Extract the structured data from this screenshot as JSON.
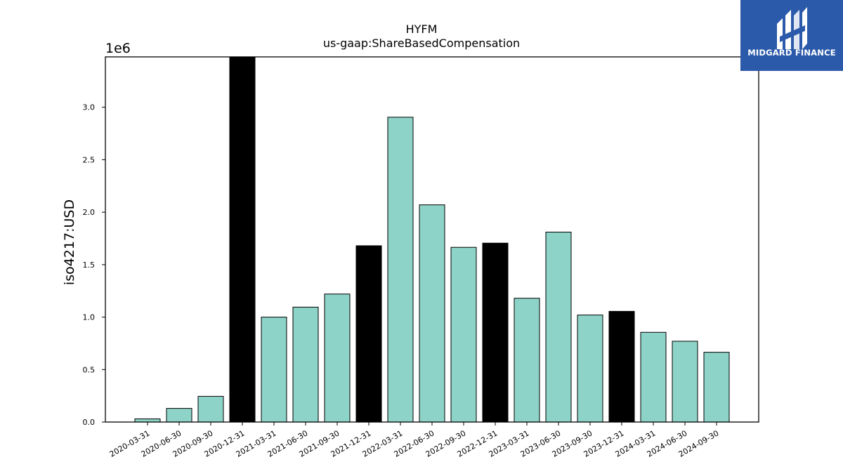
{
  "chart_data": {
    "type": "bar",
    "title": "HYFM",
    "subtitle": "us-gaap:ShareBasedCompensation",
    "ylabel": "iso4217:USD",
    "y_multiplier_label": "1e6",
    "ylim": [
      0,
      3.48
    ],
    "yticks": [
      "0.0",
      "0.5",
      "1.0",
      "1.5",
      "2.0",
      "2.5",
      "3.0"
    ],
    "categories": [
      "2020-03-31",
      "2020-06-30",
      "2020-09-30",
      "2020-12-31",
      "2021-03-31",
      "2021-06-30",
      "2021-09-30",
      "2021-12-31",
      "2022-03-31",
      "2022-06-30",
      "2022-09-30",
      "2022-12-31",
      "2023-03-31",
      "2023-06-30",
      "2023-09-30",
      "2023-12-31",
      "2024-03-31",
      "2024-06-30",
      "2024-09-30"
    ],
    "values": [
      0.03,
      0.13,
      0.245,
      3.48,
      1.0,
      1.095,
      1.22,
      1.68,
      2.905,
      2.07,
      1.665,
      1.705,
      1.18,
      1.81,
      1.02,
      1.055,
      0.855,
      0.77,
      0.665
    ],
    "bar_colors": [
      "#8dd3c7",
      "#8dd3c7",
      "#8dd3c7",
      "#000000",
      "#8dd3c7",
      "#8dd3c7",
      "#8dd3c7",
      "#000000",
      "#8dd3c7",
      "#8dd3c7",
      "#8dd3c7",
      "#000000",
      "#8dd3c7",
      "#8dd3c7",
      "#8dd3c7",
      "#000000",
      "#8dd3c7",
      "#8dd3c7",
      "#8dd3c7"
    ],
    "grid": false
  },
  "logo": {
    "text": "MIDGARD FINANCE",
    "background": "#2c5aaa",
    "icon": "midgard-logo-icon"
  }
}
